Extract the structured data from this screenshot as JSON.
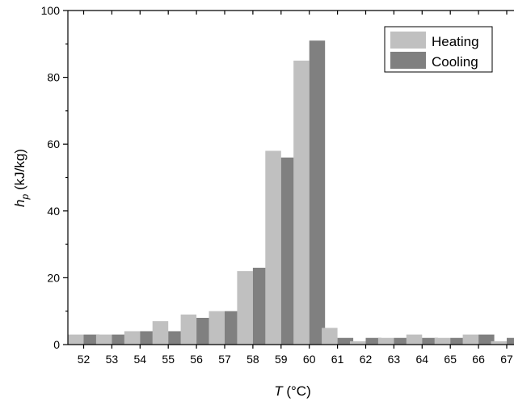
{
  "chart_data": {
    "type": "bar",
    "categories": [
      "52",
      "53",
      "54",
      "55",
      "56",
      "57",
      "58",
      "59",
      "60",
      "61",
      "62",
      "63",
      "64",
      "65",
      "66",
      "67"
    ],
    "series": [
      {
        "name": "Heating",
        "color": "#c0c0c0",
        "values": [
          3,
          3,
          4,
          7,
          9,
          10,
          22,
          58,
          85,
          5,
          1,
          2,
          3,
          2,
          3,
          1
        ]
      },
      {
        "name": "Cooling",
        "color": "#808080",
        "values": [
          3,
          3,
          4,
          4,
          8,
          10,
          23,
          56,
          91,
          2,
          2,
          2,
          2,
          2,
          3,
          2
        ]
      }
    ],
    "xlabel_var": "T",
    "xlabel_unit": " (°C)",
    "ylabel_var": "h",
    "ylabel_sub": "p",
    "ylabel_unit": " (kJ/kg)",
    "ylim": [
      0,
      100
    ],
    "yticks": [
      0,
      20,
      40,
      60,
      80,
      100
    ],
    "legend_position": "top-right",
    "grid": false
  }
}
